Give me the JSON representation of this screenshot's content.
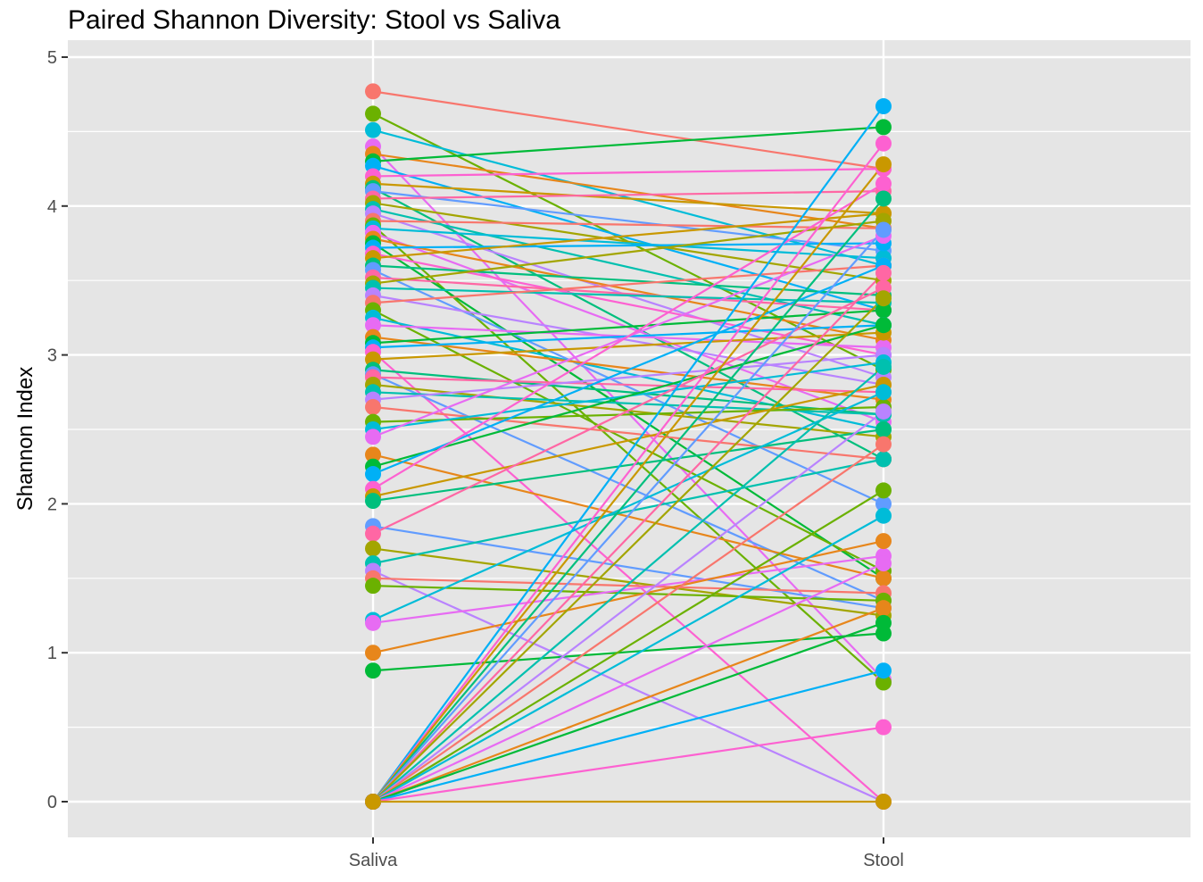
{
  "chart_data": {
    "type": "line",
    "title": "Paired Shannon Diversity: Stool vs Saliva",
    "xlabel": "",
    "ylabel": "Shannon Index",
    "categories": [
      "Saliva",
      "Stool"
    ],
    "ylim": [
      -0.25,
      5
    ],
    "yticks": [
      0,
      1,
      2,
      3,
      4,
      5
    ],
    "grid": true,
    "legend": "none",
    "panel_background": "#e5e5e5",
    "grid_color": "#ffffff",
    "palette": [
      "#f8766d",
      "#e7861b",
      "#c99800",
      "#a3a500",
      "#6bb100",
      "#00ba38",
      "#00bf7d",
      "#00c0af",
      "#00bcd8",
      "#00b0f6",
      "#619cff",
      "#b983ff",
      "#e76bf3",
      "#fd61d1",
      "#ff67a4"
    ],
    "series": [
      {
        "values": [
          4.77,
          4.25
        ]
      },
      {
        "values": [
          4.62,
          2.9
        ]
      },
      {
        "values": [
          4.51,
          3.6
        ]
      },
      {
        "values": [
          4.4,
          0.82
        ]
      },
      {
        "values": [
          4.35,
          3.85
        ]
      },
      {
        "values": [
          4.3,
          4.53
        ]
      },
      {
        "values": [
          4.27,
          3.3
        ]
      },
      {
        "values": [
          4.2,
          4.25
        ]
      },
      {
        "values": [
          4.15,
          3.95
        ]
      },
      {
        "values": [
          4.12,
          2.3
        ]
      },
      {
        "values": [
          4.1,
          3.7
        ]
      },
      {
        "values": [
          4.05,
          4.1
        ]
      },
      {
        "values": [
          4.02,
          3.5
        ]
      },
      {
        "values": [
          3.98,
          3.2
        ]
      },
      {
        "values": [
          3.95,
          2.85
        ]
      },
      {
        "values": [
          3.9,
          3.85
        ]
      },
      {
        "values": [
          3.87,
          0.8
        ]
      },
      {
        "values": [
          3.85,
          3.65
        ]
      },
      {
        "values": [
          3.82,
          2.55
        ]
      },
      {
        "values": [
          3.78,
          3.1
        ]
      },
      {
        "values": [
          3.75,
          1.5
        ]
      },
      {
        "values": [
          3.72,
          3.75
        ]
      },
      {
        "values": [
          3.68,
          3.0
        ]
      },
      {
        "values": [
          3.65,
          3.95
        ]
      },
      {
        "values": [
          3.6,
          3.4
        ]
      },
      {
        "values": [
          3.57,
          2.0
        ]
      },
      {
        "values": [
          3.52,
          3.3
        ]
      },
      {
        "values": [
          3.48,
          3.9
        ]
      },
      {
        "values": [
          3.45,
          3.35
        ]
      },
      {
        "values": [
          3.4,
          2.8
        ]
      },
      {
        "values": [
          3.35,
          3.6
        ]
      },
      {
        "values": [
          3.3,
          1.55
        ]
      },
      {
        "values": [
          3.25,
          2.5
        ]
      },
      {
        "values": [
          3.2,
          3.05
        ]
      },
      {
        "values": [
          3.12,
          2.7
        ]
      },
      {
        "values": [
          3.08,
          3.3
        ]
      },
      {
        "values": [
          3.05,
          3.2
        ]
      },
      {
        "values": [
          3.02,
          0.0
        ]
      },
      {
        "values": [
          2.97,
          3.15
        ]
      },
      {
        "values": [
          2.9,
          2.6
        ]
      },
      {
        "values": [
          2.87,
          1.35
        ]
      },
      {
        "values": [
          2.85,
          2.75
        ]
      },
      {
        "values": [
          2.8,
          2.45
        ]
      },
      {
        "values": [
          2.75,
          2.6
        ]
      },
      {
        "values": [
          2.7,
          3.0
        ]
      },
      {
        "values": [
          2.65,
          2.3
        ]
      },
      {
        "values": [
          2.55,
          2.65
        ]
      },
      {
        "values": [
          2.5,
          2.95
        ]
      },
      {
        "values": [
          2.45,
          3.8
        ]
      },
      {
        "values": [
          2.33,
          1.5
        ]
      },
      {
        "values": [
          2.25,
          3.2
        ]
      },
      {
        "values": [
          2.2,
          3.6
        ]
      },
      {
        "values": [
          2.1,
          4.15
        ]
      },
      {
        "values": [
          2.05,
          2.8
        ]
      },
      {
        "values": [
          2.02,
          2.5
        ]
      },
      {
        "values": [
          1.85,
          1.3
        ]
      },
      {
        "values": [
          1.8,
          3.45
        ]
      },
      {
        "values": [
          1.7,
          1.25
        ]
      },
      {
        "values": [
          1.6,
          2.3
        ]
      },
      {
        "values": [
          1.55,
          0.0
        ]
      },
      {
        "values": [
          1.5,
          1.4
        ]
      },
      {
        "values": [
          1.45,
          1.35
        ]
      },
      {
        "values": [
          1.22,
          2.75
        ]
      },
      {
        "values": [
          1.2,
          1.65
        ]
      },
      {
        "values": [
          1.0,
          1.75
        ]
      },
      {
        "values": [
          0.88,
          1.13
        ]
      },
      {
        "values": [
          0.0,
          4.67
        ]
      },
      {
        "values": [
          0.0,
          4.42
        ]
      },
      {
        "values": [
          0.0,
          4.28
        ]
      },
      {
        "values": [
          0.0,
          4.05
        ]
      },
      {
        "values": [
          0.0,
          3.84
        ]
      },
      {
        "values": [
          0.0,
          3.55
        ]
      },
      {
        "values": [
          0.0,
          3.38
        ]
      },
      {
        "values": [
          0.0,
          2.92
        ]
      },
      {
        "values": [
          0.0,
          2.62
        ]
      },
      {
        "values": [
          0.0,
          2.4
        ]
      },
      {
        "values": [
          0.0,
          2.09
        ]
      },
      {
        "values": [
          0.0,
          1.92
        ]
      },
      {
        "values": [
          0.0,
          1.6
        ]
      },
      {
        "values": [
          0.0,
          1.3
        ]
      },
      {
        "values": [
          0.0,
          1.2
        ]
      },
      {
        "values": [
          0.0,
          0.88
        ]
      },
      {
        "values": [
          0.0,
          0.5
        ]
      },
      {
        "values": [
          0.0,
          0.0
        ]
      }
    ]
  }
}
